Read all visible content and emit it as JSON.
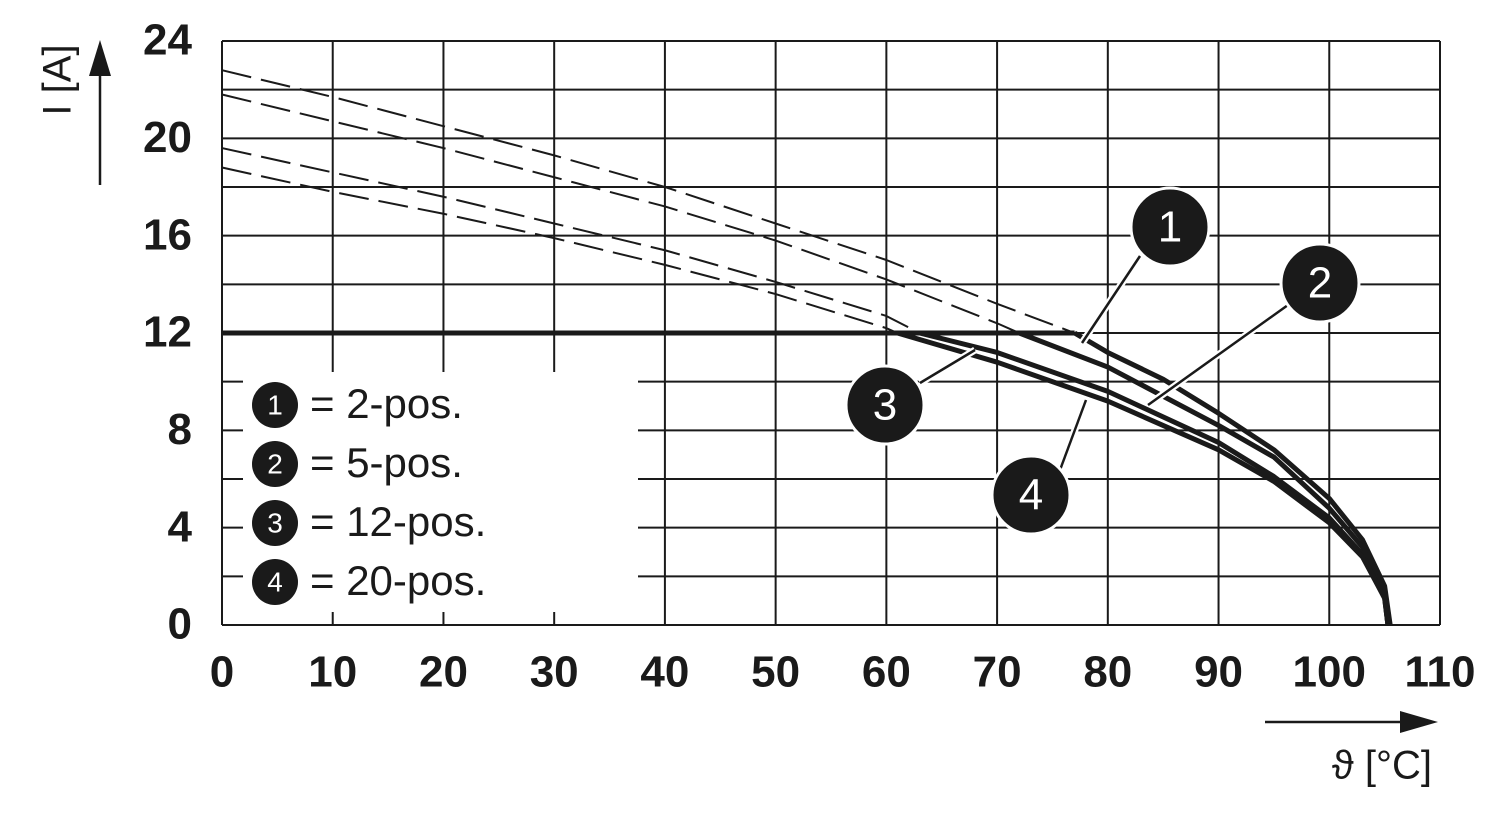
{
  "chart_data": {
    "type": "line",
    "x_label": "ϑ [°C]",
    "y_label": "I [A]",
    "xlim": [
      0,
      110
    ],
    "xticks": [
      0,
      10,
      20,
      30,
      40,
      50,
      60,
      70,
      80,
      90,
      100,
      110
    ],
    "ylim": [
      0,
      24
    ],
    "yticks": [
      0,
      4,
      8,
      12,
      16,
      20,
      24
    ],
    "yminor": [
      2,
      6,
      10,
      14,
      18,
      22
    ],
    "grid": true,
    "current_limit": 12,
    "color": "#1a1a1a",
    "series": [
      {
        "marker": "1",
        "name": "= 2-pos.",
        "x": [
          0,
          10,
          20,
          30,
          40,
          50,
          60,
          70,
          77,
          80,
          85,
          90,
          95,
          100,
          103,
          105,
          105.5
        ],
        "values": [
          22.8,
          21.7,
          20.5,
          19.3,
          18.0,
          16.5,
          15.0,
          13.2,
          12,
          11.2,
          10.1,
          8.7,
          7.2,
          5.2,
          3.5,
          1.6,
          0
        ]
      },
      {
        "marker": "2",
        "name": "= 5-pos.",
        "x": [
          0,
          10,
          20,
          30,
          40,
          50,
          60,
          70,
          72,
          80,
          90,
          95,
          100,
          103,
          105,
          105.3
        ],
        "values": [
          21.8,
          20.7,
          19.6,
          18.4,
          17.2,
          15.8,
          14.2,
          12.4,
          12,
          10.6,
          8.2,
          6.9,
          4.8,
          3.2,
          1.2,
          0
        ]
      },
      {
        "marker": "3",
        "name": "= 12-pos.",
        "x": [
          0,
          10,
          20,
          30,
          40,
          50,
          60,
          63,
          70,
          80,
          90,
          95,
          100,
          103,
          105,
          105.3
        ],
        "values": [
          19.6,
          18.6,
          17.6,
          16.5,
          15.4,
          14.1,
          12.7,
          12,
          11.2,
          9.6,
          7.5,
          6.1,
          4.4,
          2.9,
          1.1,
          0
        ]
      },
      {
        "marker": "4",
        "name": "= 20-pos.",
        "x": [
          0,
          10,
          20,
          30,
          40,
          50,
          60,
          61,
          70,
          80,
          90,
          95,
          100,
          103,
          105,
          105.3
        ],
        "values": [
          18.8,
          17.8,
          16.9,
          15.9,
          14.8,
          13.6,
          12.2,
          12,
          10.8,
          9.2,
          7.2,
          5.9,
          4.2,
          2.8,
          1.1,
          0
        ]
      }
    ]
  }
}
